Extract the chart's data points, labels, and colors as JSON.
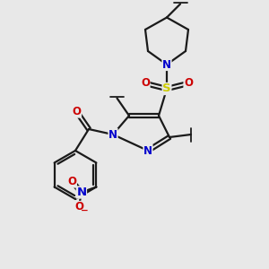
{
  "background_color": "#e8e8e8",
  "bond_color": "#1a1a1a",
  "atom_colors": {
    "N": "#0000cc",
    "O": "#cc0000",
    "S": "#cccc00",
    "C": "#1a1a1a"
  },
  "figsize": [
    3.0,
    3.0
  ],
  "dpi": 100,
  "lw": 1.6,
  "fontsize": 8.5
}
